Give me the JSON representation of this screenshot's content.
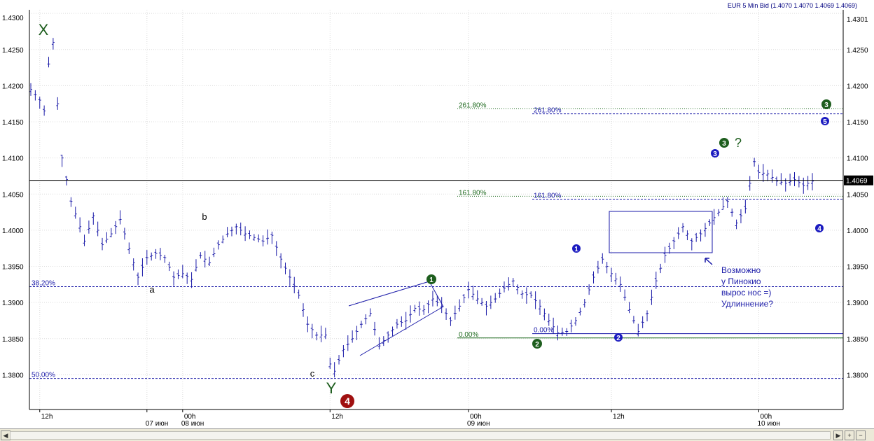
{
  "header": {
    "instrument_label": "EUR 5 Min Bid (1.4070 1.4070 1.4069 1.4069)"
  },
  "colors": {
    "price_bar": "#1a1aa8",
    "fib_green": "#1f6a1f",
    "fib_blue": "#1a1aa8",
    "wave_green": "#1e5e1e",
    "wave_blue": "#1c1cc0",
    "wave_red": "#a01010",
    "grid": "#dcdcdc"
  },
  "chart_data": {
    "type": "bar",
    "title": "",
    "ylim": [
      1.3752,
      1.4305
    ],
    "y_ticks": [
      "1.3800",
      "1.3850",
      "1.3900",
      "1.3950",
      "1.4000",
      "1.4050",
      "1.4100",
      "1.4150",
      "1.4200",
      "1.4250",
      "1.4300"
    ],
    "y_tick_values": [
      1.38,
      1.385,
      1.39,
      1.395,
      1.4,
      1.405,
      1.41,
      1.415,
      1.42,
      1.425,
      1.43
    ],
    "right_axis_partial_labels": [
      "1.4301",
      "1.4300"
    ],
    "x_labels_row1": [
      "12h",
      "",
      "00h",
      "12h",
      "00h",
      "12h",
      "00h"
    ],
    "x_labels_row2": [
      "",
      "07 июн",
      "08 июн",
      "",
      "09 июн",
      "",
      "10 июн"
    ],
    "x_label_index": [
      2,
      26,
      34,
      67,
      98,
      130,
      163
    ],
    "n_bars": 176,
    "current_price": 1.4069,
    "current_price_label": "1.4069",
    "price_keypoints": [
      {
        "i": 0,
        "price": 1.4195
      },
      {
        "i": 2,
        "price": 1.418
      },
      {
        "i": 3,
        "price": 1.4165
      },
      {
        "i": 4,
        "price": 1.423
      },
      {
        "i": 5,
        "price": 1.426
      },
      {
        "i": 6,
        "price": 1.4175
      },
      {
        "i": 7,
        "price": 1.41
      },
      {
        "i": 9,
        "price": 1.404
      },
      {
        "i": 11,
        "price": 1.4005
      },
      {
        "i": 12,
        "price": 1.3985
      },
      {
        "i": 14,
        "price": 1.402
      },
      {
        "i": 16,
        "price": 1.398
      },
      {
        "i": 18,
        "price": 1.3995
      },
      {
        "i": 20,
        "price": 1.4015
      },
      {
        "i": 22,
        "price": 1.3975
      },
      {
        "i": 24,
        "price": 1.3935
      },
      {
        "i": 26,
        "price": 1.3962
      },
      {
        "i": 28,
        "price": 1.3968
      },
      {
        "i": 30,
        "price": 1.3962
      },
      {
        "i": 32,
        "price": 1.3935
      },
      {
        "i": 34,
        "price": 1.394
      },
      {
        "i": 36,
        "price": 1.3932
      },
      {
        "i": 38,
        "price": 1.3965
      },
      {
        "i": 40,
        "price": 1.3955
      },
      {
        "i": 42,
        "price": 1.398
      },
      {
        "i": 44,
        "price": 1.3995
      },
      {
        "i": 46,
        "price": 1.4005
      },
      {
        "i": 48,
        "price": 1.3995
      },
      {
        "i": 50,
        "price": 1.399
      },
      {
        "i": 52,
        "price": 1.3985
      },
      {
        "i": 54,
        "price": 1.3993
      },
      {
        "i": 56,
        "price": 1.396
      },
      {
        "i": 58,
        "price": 1.3935
      },
      {
        "i": 60,
        "price": 1.391
      },
      {
        "i": 62,
        "price": 1.387
      },
      {
        "i": 64,
        "price": 1.3855
      },
      {
        "i": 66,
        "price": 1.3855
      },
      {
        "i": 67,
        "price": 1.3815
      },
      {
        "i": 68,
        "price": 1.3805
      },
      {
        "i": 70,
        "price": 1.3835
      },
      {
        "i": 72,
        "price": 1.385
      },
      {
        "i": 74,
        "price": 1.387
      },
      {
        "i": 76,
        "price": 1.3885
      },
      {
        "i": 78,
        "price": 1.384
      },
      {
        "i": 80,
        "price": 1.3855
      },
      {
        "i": 82,
        "price": 1.387
      },
      {
        "i": 84,
        "price": 1.3875
      },
      {
        "i": 86,
        "price": 1.3892
      },
      {
        "i": 88,
        "price": 1.389
      },
      {
        "i": 90,
        "price": 1.3905
      },
      {
        "i": 92,
        "price": 1.3895
      },
      {
        "i": 94,
        "price": 1.3875
      },
      {
        "i": 96,
        "price": 1.3895
      },
      {
        "i": 98,
        "price": 1.3918
      },
      {
        "i": 100,
        "price": 1.3905
      },
      {
        "i": 102,
        "price": 1.3895
      },
      {
        "i": 104,
        "price": 1.3905
      },
      {
        "i": 106,
        "price": 1.392
      },
      {
        "i": 108,
        "price": 1.393
      },
      {
        "i": 110,
        "price": 1.3912
      },
      {
        "i": 112,
        "price": 1.391
      },
      {
        "i": 114,
        "price": 1.3895
      },
      {
        "i": 116,
        "price": 1.3875
      },
      {
        "i": 118,
        "price": 1.3858
      },
      {
        "i": 120,
        "price": 1.386
      },
      {
        "i": 122,
        "price": 1.3875
      },
      {
        "i": 124,
        "price": 1.39
      },
      {
        "i": 126,
        "price": 1.3935
      },
      {
        "i": 128,
        "price": 1.396
      },
      {
        "i": 130,
        "price": 1.394
      },
      {
        "i": 132,
        "price": 1.3925
      },
      {
        "i": 134,
        "price": 1.389
      },
      {
        "i": 136,
        "price": 1.386
      },
      {
        "i": 138,
        "price": 1.3885
      },
      {
        "i": 140,
        "price": 1.393
      },
      {
        "i": 142,
        "price": 1.3965
      },
      {
        "i": 144,
        "price": 1.3985
      },
      {
        "i": 146,
        "price": 1.4005
      },
      {
        "i": 148,
        "price": 1.3985
      },
      {
        "i": 150,
        "price": 1.3995
      },
      {
        "i": 152,
        "price": 1.401
      },
      {
        "i": 154,
        "price": 1.4025
      },
      {
        "i": 156,
        "price": 1.404
      },
      {
        "i": 158,
        "price": 1.401
      },
      {
        "i": 160,
        "price": 1.403
      },
      {
        "i": 161,
        "price": 1.4065
      },
      {
        "i": 162,
        "price": 1.4095
      },
      {
        "i": 163,
        "price": 1.408
      },
      {
        "i": 165,
        "price": 1.4078
      },
      {
        "i": 167,
        "price": 1.4068
      },
      {
        "i": 169,
        "price": 1.4065
      },
      {
        "i": 171,
        "price": 1.407
      },
      {
        "i": 173,
        "price": 1.4062
      },
      {
        "i": 175,
        "price": 1.4068
      }
    ],
    "fib_levels": [
      {
        "label": "38.20%",
        "price": 1.3922,
        "style": "dashed",
        "color": "blue"
      },
      {
        "label": "50.00%",
        "price": 1.3795,
        "style": "dashed",
        "color": "blue"
      },
      {
        "label": "261.80%",
        "price": 1.4168,
        "style": "dotted",
        "color": "green"
      },
      {
        "label": "261.80%",
        "price": 1.4161,
        "style": "dashed",
        "color": "blue"
      },
      {
        "label": "161.80%",
        "price": 1.4047,
        "style": "dotted",
        "color": "green"
      },
      {
        "label": "161.80%",
        "price": 1.4043,
        "style": "dashed",
        "color": "blue"
      },
      {
        "label": "0.00%",
        "price": 1.3851,
        "style": "solid",
        "color": "green"
      },
      {
        "label": "0.00%",
        "price": 1.3857,
        "style": "solid",
        "color": "blue"
      }
    ],
    "wave_labels": [
      {
        "text": "X",
        "type": "letter",
        "color": "green"
      },
      {
        "text": "Y",
        "type": "letter",
        "color": "green"
      },
      {
        "text": "a",
        "type": "small"
      },
      {
        "text": "b",
        "type": "small"
      },
      {
        "text": "c",
        "type": "small"
      },
      {
        "text": "4",
        "type": "circle",
        "color": "red"
      },
      {
        "text": "1",
        "type": "circle",
        "color": "green"
      },
      {
        "text": "2",
        "type": "circle",
        "color": "green"
      },
      {
        "text": "3",
        "type": "circle",
        "color": "green"
      },
      {
        "text": "3",
        "type": "circle",
        "color": "green"
      },
      {
        "text": "1",
        "type": "circle",
        "color": "blue"
      },
      {
        "text": "2",
        "type": "circle",
        "color": "blue"
      },
      {
        "text": "3",
        "type": "circle",
        "color": "blue"
      },
      {
        "text": "4",
        "type": "circle",
        "color": "blue"
      },
      {
        "text": "5",
        "type": "circle",
        "color": "blue"
      }
    ],
    "question_mark": "?",
    "annotation_text": [
      "Возможно",
      "у Пинокио",
      "вырос нос =)",
      "Удлиннение?"
    ]
  }
}
